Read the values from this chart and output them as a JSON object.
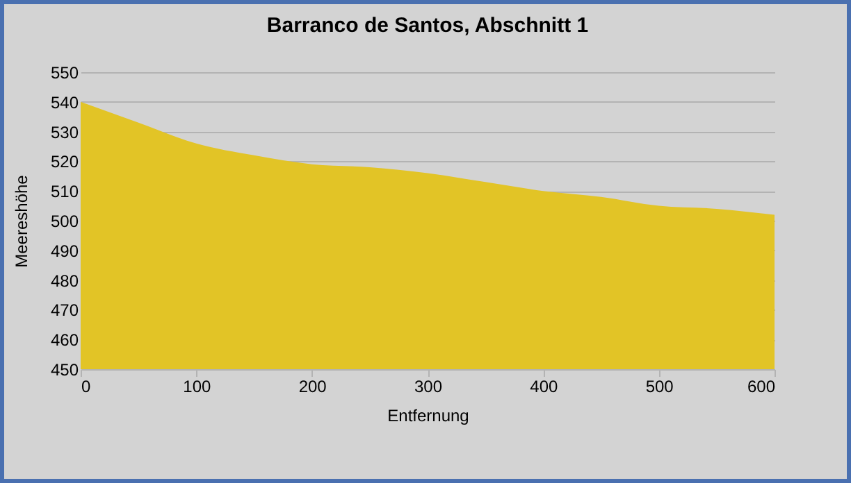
{
  "chart_data": {
    "type": "area",
    "title": "Barranco de Santos, Abschnitt 1",
    "xlabel": "Entfernung",
    "ylabel": "Meereshöhe",
    "x": [
      0,
      50,
      100,
      150,
      200,
      250,
      300,
      350,
      400,
      450,
      500,
      550,
      600
    ],
    "series": [
      {
        "color": "#e2c426",
        "values": [
          540,
          533,
          526,
          522,
          519,
          518,
          516,
          513,
          510,
          508,
          505,
          504,
          502
        ]
      }
    ],
    "xlim": [
      0,
      600
    ],
    "xticks": [
      0,
      100,
      200,
      300,
      400,
      500,
      600
    ],
    "ylim": [
      450,
      550
    ],
    "yticks": [
      450,
      460,
      470,
      480,
      490,
      500,
      510,
      520,
      530,
      540,
      550
    ],
    "grid": "y"
  }
}
